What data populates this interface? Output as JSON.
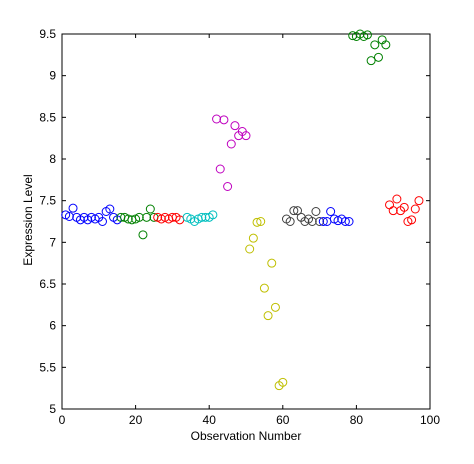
{
  "chart_data": {
    "type": "scatter",
    "xlabel": "Observation Number",
    "ylabel": "Expression Level",
    "xlim": [
      0,
      100
    ],
    "ylim": [
      5,
      9.5
    ],
    "x_ticks": [
      0,
      20,
      40,
      60,
      80,
      100
    ],
    "x_tick_labels": [
      "0",
      "20",
      "40",
      "60",
      "80",
      "100"
    ],
    "y_ticks": [
      5,
      5.5,
      6,
      6.5,
      7,
      7.5,
      8,
      8.5,
      9,
      9.5
    ],
    "y_tick_labels": [
      "5",
      "5.5",
      "6",
      "6.5",
      "7",
      "7.5",
      "8",
      "8.5",
      "9",
      "9.5"
    ],
    "grid": false,
    "marker": "open-circle",
    "series": [
      {
        "color": "#0000ff",
        "points": [
          [
            1,
            7.33
          ],
          [
            2,
            7.31
          ],
          [
            3,
            7.41
          ],
          [
            4,
            7.3
          ],
          [
            5,
            7.27
          ],
          [
            6,
            7.3
          ],
          [
            7,
            7.27
          ],
          [
            8,
            7.3
          ],
          [
            9,
            7.28
          ],
          [
            10,
            7.3
          ],
          [
            11,
            7.25
          ],
          [
            12,
            7.37
          ],
          [
            13,
            7.4
          ],
          [
            14,
            7.3
          ],
          [
            15,
            7.27
          ]
        ]
      },
      {
        "color": "#008000",
        "points": [
          [
            16,
            7.3
          ],
          [
            17,
            7.3
          ],
          [
            18,
            7.28
          ],
          [
            19,
            7.27
          ],
          [
            20,
            7.28
          ],
          [
            21,
            7.3
          ],
          [
            22,
            7.09
          ],
          [
            23,
            7.3
          ],
          [
            24,
            7.4
          ],
          [
            25,
            7.3
          ]
        ]
      },
      {
        "color": "#ff0000",
        "points": [
          [
            26,
            7.3
          ],
          [
            27,
            7.28
          ],
          [
            28,
            7.3
          ],
          [
            29,
            7.28
          ],
          [
            30,
            7.3
          ],
          [
            31,
            7.3
          ],
          [
            32,
            7.27
          ]
        ]
      },
      {
        "color": "#00bfbf",
        "points": [
          [
            34,
            7.3
          ],
          [
            35,
            7.28
          ],
          [
            36,
            7.25
          ],
          [
            37,
            7.28
          ],
          [
            38,
            7.3
          ],
          [
            39,
            7.3
          ],
          [
            40,
            7.3
          ],
          [
            41,
            7.33
          ]
        ]
      },
      {
        "color": "#bf00bf",
        "points": [
          [
            42,
            8.48
          ],
          [
            43,
            7.88
          ],
          [
            44,
            8.47
          ],
          [
            45,
            7.67
          ],
          [
            46,
            8.18
          ],
          [
            47,
            8.4
          ],
          [
            48,
            8.28
          ],
          [
            49,
            8.33
          ],
          [
            50,
            8.28
          ]
        ]
      },
      {
        "color": "#bfbf00",
        "points": [
          [
            51,
            6.92
          ],
          [
            52,
            7.05
          ],
          [
            53,
            7.24
          ],
          [
            54,
            7.25
          ],
          [
            55,
            6.45
          ],
          [
            56,
            6.12
          ],
          [
            57,
            6.75
          ],
          [
            58,
            6.22
          ],
          [
            59,
            5.28
          ],
          [
            60,
            5.32
          ]
        ]
      },
      {
        "color": "#404040",
        "points": [
          [
            61,
            7.28
          ],
          [
            62,
            7.25
          ],
          [
            63,
            7.38
          ],
          [
            64,
            7.38
          ],
          [
            65,
            7.3
          ],
          [
            66,
            7.25
          ],
          [
            67,
            7.28
          ],
          [
            68,
            7.25
          ],
          [
            69,
            7.37
          ],
          [
            70,
            7.25
          ]
        ]
      },
      {
        "color": "#0000ff",
        "points": [
          [
            71,
            7.25
          ],
          [
            72,
            7.25
          ],
          [
            73,
            7.37
          ],
          [
            74,
            7.28
          ],
          [
            75,
            7.26
          ],
          [
            76,
            7.28
          ],
          [
            77,
            7.25
          ],
          [
            78,
            7.25
          ]
        ]
      },
      {
        "color": "#008000",
        "points": [
          [
            79,
            9.48
          ],
          [
            80,
            9.47
          ],
          [
            81,
            9.5
          ],
          [
            82,
            9.47
          ],
          [
            83,
            9.49
          ],
          [
            84,
            9.18
          ],
          [
            85,
            9.37
          ],
          [
            86,
            9.22
          ],
          [
            87,
            9.43
          ],
          [
            88,
            9.37
          ]
        ]
      },
      {
        "color": "#ff0000",
        "points": [
          [
            89,
            7.45
          ],
          [
            90,
            7.38
          ],
          [
            91,
            7.52
          ],
          [
            92,
            7.38
          ],
          [
            93,
            7.42
          ],
          [
            94,
            7.25
          ],
          [
            95,
            7.27
          ],
          [
            96,
            7.4
          ],
          [
            97,
            7.5
          ]
        ]
      }
    ]
  }
}
